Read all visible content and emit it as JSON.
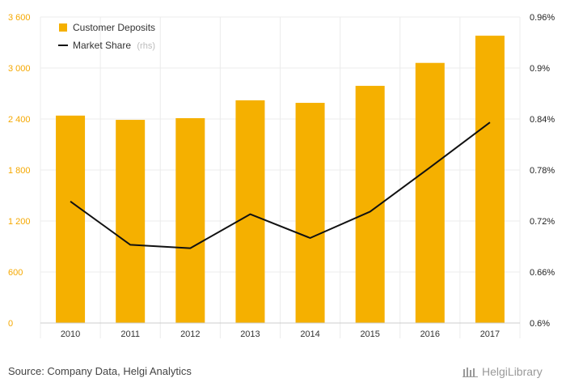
{
  "chart_data": {
    "type": "bar",
    "categories": [
      "2010",
      "2011",
      "2012",
      "2013",
      "2014",
      "2015",
      "2016",
      "2017"
    ],
    "series": [
      {
        "name": "Customer Deposits",
        "type": "bar",
        "axis": "left",
        "color": "#f5b000",
        "values": [
          2440,
          2390,
          2410,
          2620,
          2590,
          2790,
          3060,
          3380
        ]
      },
      {
        "name": "Market Share",
        "name_suffix": "(rhs)",
        "type": "line",
        "axis": "right",
        "color": "#111111",
        "values": [
          0.743,
          0.692,
          0.688,
          0.728,
          0.7,
          0.731,
          0.783,
          0.836
        ]
      }
    ],
    "y_left": {
      "ylim": [
        0,
        3600
      ],
      "ticks": [
        0,
        600,
        1200,
        1800,
        2400,
        3000,
        3600
      ],
      "tick_labels": [
        "0",
        "600",
        "1 200",
        "1 800",
        "2 400",
        "3 000",
        "3 600"
      ],
      "tick_color": "#f5a800"
    },
    "y_right": {
      "ylim": [
        0.6,
        0.96
      ],
      "ticks": [
        0.6,
        0.66,
        0.72,
        0.78,
        0.84,
        0.9,
        0.96
      ],
      "tick_labels": [
        "0.6%",
        "0.66%",
        "0.72%",
        "0.78%",
        "0.84%",
        "0.9%",
        "0.96%"
      ]
    },
    "grid": true,
    "legend_position": "top-left",
    "title": "",
    "xlabel": "",
    "ylabel": ""
  },
  "footer": {
    "source": "Source: Company Data, Helgi Analytics",
    "brand": "HelgiLibrary"
  }
}
